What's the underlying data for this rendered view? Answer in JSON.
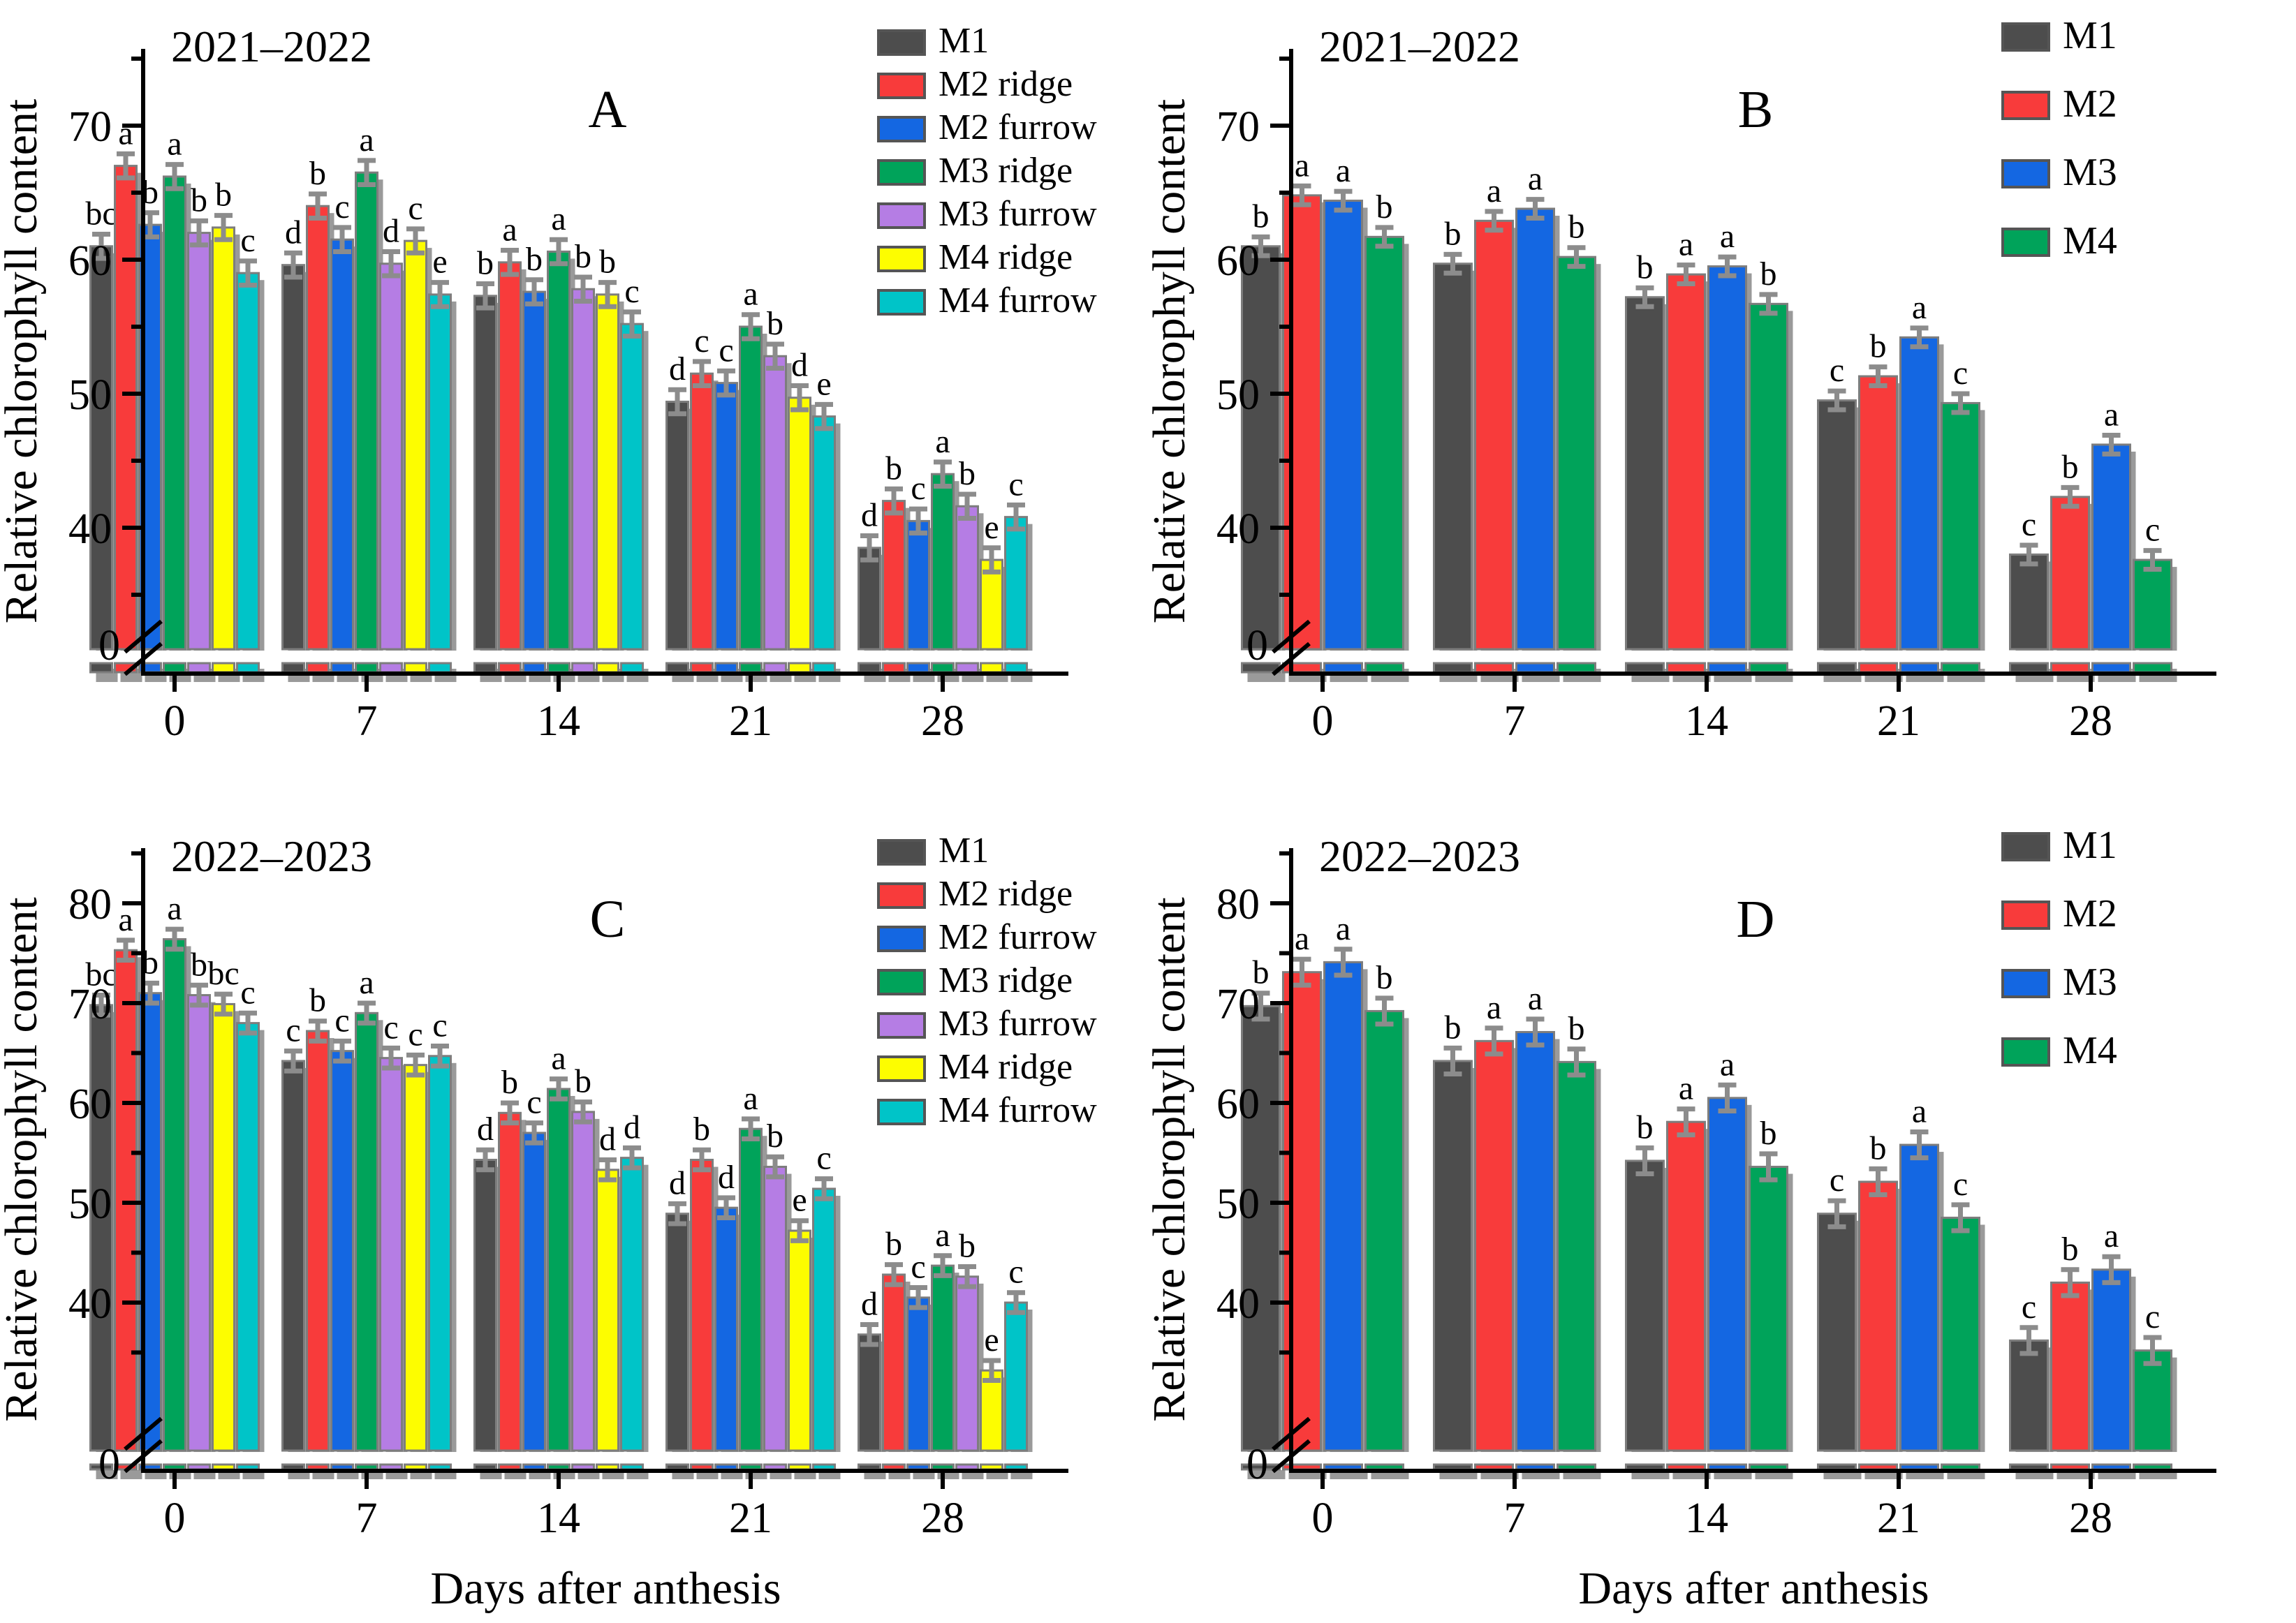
{
  "figure": {
    "ylabel": "Relative chlorophyll content",
    "xlabel": "Days after anthesis",
    "categories": [
      "0",
      "7",
      "14",
      "21",
      "28"
    ]
  },
  "palette": {
    "M1": "#4d4d4d",
    "M2_ridge": "#f83b3b",
    "M2_furrow": "#1467e2",
    "M3_ridge": "#00a35a",
    "M3_furrow": "#b57de4",
    "M4_ridge": "#fdfd00",
    "M4_furrow": "#00c4c8",
    "error_bar": "#8c8c8c",
    "bar_outline": "#7d7d7d",
    "bar_shadow": "#9a9a9a"
  },
  "chart_data": [
    {
      "id": "A",
      "panel_label": "A",
      "title": "2021–2022",
      "type": "bar",
      "ylabel": "Relative chlorophyll content",
      "categories": [
        "0",
        "7",
        "14",
        "21",
        "28"
      ],
      "yticks_major": [
        40,
        50,
        60,
        70
      ],
      "yticks_minor": [
        35,
        45,
        55,
        65,
        75
      ],
      "zero_label": "0",
      "axis_break": true,
      "approx_error": 0.9,
      "legend_position": "top-right",
      "series": [
        {
          "name": "M1",
          "color": "#4d4d4d",
          "values": [
            61.0,
            59.6,
            57.3,
            49.4,
            38.5
          ],
          "letters": [
            "bc",
            "d",
            "b",
            "d",
            "d"
          ]
        },
        {
          "name": "M2 ridge",
          "color": "#f83b3b",
          "values": [
            67.0,
            64.0,
            59.8,
            51.5,
            42.0
          ],
          "letters": [
            "a",
            "b",
            "a",
            "c",
            "b"
          ]
        },
        {
          "name": "M2 furrow",
          "color": "#1467e2",
          "values": [
            62.6,
            61.5,
            57.6,
            50.8,
            40.5
          ],
          "letters": [
            "b",
            "c",
            "b",
            "c",
            "c"
          ]
        },
        {
          "name": "M3 ridge",
          "color": "#00a35a",
          "values": [
            66.2,
            66.5,
            60.6,
            55.0,
            44.0
          ],
          "letters": [
            "a",
            "a",
            "a",
            "a",
            "a"
          ]
        },
        {
          "name": "M3 furrow",
          "color": "#b57de4",
          "values": [
            62.0,
            59.7,
            57.8,
            52.8,
            41.6
          ],
          "letters": [
            "b",
            "d",
            "b",
            "b",
            "b"
          ]
        },
        {
          "name": "M4 ridge",
          "color": "#fdfd00",
          "values": [
            62.4,
            61.4,
            57.4,
            49.7,
            37.6
          ],
          "letters": [
            "b",
            "c",
            "b",
            "d",
            "e"
          ]
        },
        {
          "name": "M4 furrow",
          "color": "#00c4c8",
          "values": [
            59.0,
            57.4,
            55.2,
            48.3,
            40.8
          ],
          "letters": [
            "c",
            "e",
            "c",
            "e",
            "c"
          ]
        }
      ]
    },
    {
      "id": "B",
      "panel_label": "B",
      "title": "2021–2022",
      "type": "bar",
      "ylabel": "Relative chlorophyll content",
      "categories": [
        "0",
        "7",
        "14",
        "21",
        "28"
      ],
      "yticks_major": [
        40,
        50,
        60,
        70
      ],
      "yticks_minor": [
        35,
        45,
        55,
        65,
        75
      ],
      "zero_label": "0",
      "axis_break": true,
      "approx_error": 0.7,
      "legend_position": "top-right",
      "series": [
        {
          "name": "M1",
          "color": "#4d4d4d",
          "values": [
            61.0,
            59.7,
            57.2,
            49.5,
            38.0
          ],
          "letters": [
            "b",
            "b",
            "b",
            "c",
            "c"
          ]
        },
        {
          "name": "M2",
          "color": "#f83b3b",
          "values": [
            64.8,
            62.9,
            58.9,
            51.3,
            42.3
          ],
          "letters": [
            "a",
            "a",
            "a",
            "b",
            "b"
          ]
        },
        {
          "name": "M3",
          "color": "#1467e2",
          "values": [
            64.4,
            63.8,
            59.5,
            54.2,
            46.2
          ],
          "letters": [
            "a",
            "a",
            "a",
            "a",
            "a"
          ]
        },
        {
          "name": "M4",
          "color": "#00a35a",
          "values": [
            61.7,
            60.2,
            56.7,
            49.3,
            37.6
          ],
          "letters": [
            "b",
            "b",
            "b",
            "c",
            "c"
          ]
        }
      ]
    },
    {
      "id": "C",
      "panel_label": "C",
      "title": "2022–2023",
      "type": "bar",
      "ylabel": "Relative chlorophyll content",
      "xlabel": "Days after anthesis",
      "categories": [
        "0",
        "7",
        "14",
        "21",
        "28"
      ],
      "yticks_major": [
        40,
        50,
        60,
        70,
        80
      ],
      "yticks_minor": [
        35,
        45,
        55,
        65,
        75,
        85
      ],
      "zero_label": "0",
      "axis_break": true,
      "approx_error": 1.0,
      "legend_position": "top-right",
      "series": [
        {
          "name": "M1",
          "color": "#4d4d4d",
          "values": [
            69.8,
            64.2,
            54.3,
            48.9,
            36.8
          ],
          "letters": [
            "bc",
            "c",
            "d",
            "d",
            "d"
          ]
        },
        {
          "name": "M2 ridge",
          "color": "#f83b3b",
          "values": [
            75.3,
            67.2,
            59.0,
            54.3,
            42.8
          ],
          "letters": [
            "a",
            "b",
            "b",
            "b",
            "b"
          ]
        },
        {
          "name": "M2 furrow",
          "color": "#1467e2",
          "values": [
            71.0,
            65.2,
            57.0,
            49.5,
            40.5
          ],
          "letters": [
            "b",
            "c",
            "c",
            "d",
            "c"
          ]
        },
        {
          "name": "M3 ridge",
          "color": "#00a35a",
          "values": [
            76.4,
            69.0,
            61.4,
            57.4,
            43.7
          ],
          "letters": [
            "a",
            "a",
            "a",
            "a",
            "a"
          ]
        },
        {
          "name": "M3 furrow",
          "color": "#b57de4",
          "values": [
            70.8,
            64.5,
            59.1,
            53.6,
            42.6
          ],
          "letters": [
            "b",
            "c",
            "b",
            "b",
            "b"
          ]
        },
        {
          "name": "M4 ridge",
          "color": "#fdfd00",
          "values": [
            69.9,
            63.8,
            53.3,
            47.2,
            33.2
          ],
          "letters": [
            "bc",
            "c",
            "d",
            "e",
            "e"
          ]
        },
        {
          "name": "M4 furrow",
          "color": "#00c4c8",
          "values": [
            68.0,
            64.7,
            54.5,
            51.4,
            40.0
          ],
          "letters": [
            "c",
            "c",
            "d",
            "c",
            "c"
          ]
        }
      ]
    },
    {
      "id": "D",
      "panel_label": "D",
      "title": "2022–2023",
      "type": "bar",
      "ylabel": "Relative chlorophyll content",
      "xlabel": "Days after anthesis",
      "categories": [
        "0",
        "7",
        "14",
        "21",
        "28"
      ],
      "yticks_major": [
        40,
        50,
        60,
        70,
        80
      ],
      "yticks_minor": [
        35,
        45,
        55,
        65,
        75,
        85
      ],
      "zero_label": "0",
      "axis_break": true,
      "approx_error": 1.3,
      "legend_position": "top-right",
      "series": [
        {
          "name": "M1",
          "color": "#4d4d4d",
          "values": [
            69.7,
            64.2,
            54.2,
            48.9,
            36.2
          ],
          "letters": [
            "b",
            "b",
            "b",
            "c",
            "c"
          ]
        },
        {
          "name": "M2",
          "color": "#f83b3b",
          "values": [
            73.1,
            66.2,
            58.1,
            52.1,
            42.0
          ],
          "letters": [
            "a",
            "a",
            "a",
            "b",
            "b"
          ]
        },
        {
          "name": "M3",
          "color": "#1467e2",
          "values": [
            74.1,
            67.1,
            60.5,
            55.8,
            43.3
          ],
          "letters": [
            "a",
            "a",
            "a",
            "a",
            "a"
          ]
        },
        {
          "name": "M4",
          "color": "#00a35a",
          "values": [
            69.2,
            64.1,
            53.6,
            48.5,
            35.2
          ],
          "letters": [
            "b",
            "b",
            "b",
            "c",
            "c"
          ]
        }
      ]
    }
  ]
}
